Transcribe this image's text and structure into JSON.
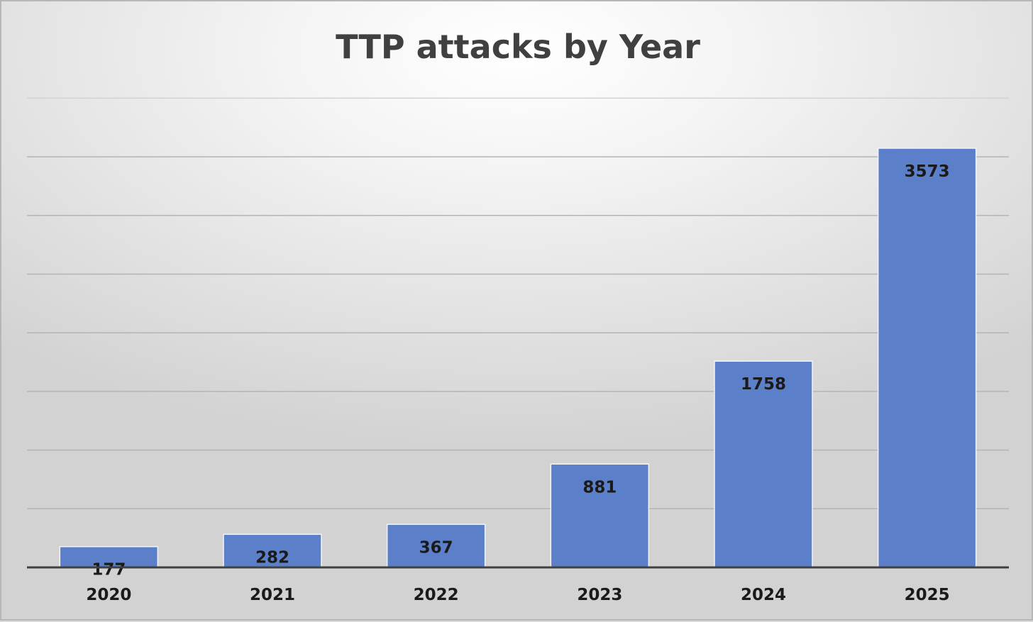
{
  "chart_data": {
    "type": "bar",
    "title": "TTP attacks by Year",
    "categories": [
      "2020",
      "2021",
      "2022",
      "2023",
      "2024",
      "2025"
    ],
    "values": [
      177,
      282,
      367,
      881,
      1758,
      3573
    ],
    "xlabel": "",
    "ylabel": "",
    "ylim": [
      0,
      4000
    ],
    "grid": true,
    "legend": "none",
    "colors": {
      "bar": "#5b80c9",
      "bar_border": "#f2f4fa",
      "grid": "#b4b4b4",
      "axis": "#404040"
    }
  }
}
